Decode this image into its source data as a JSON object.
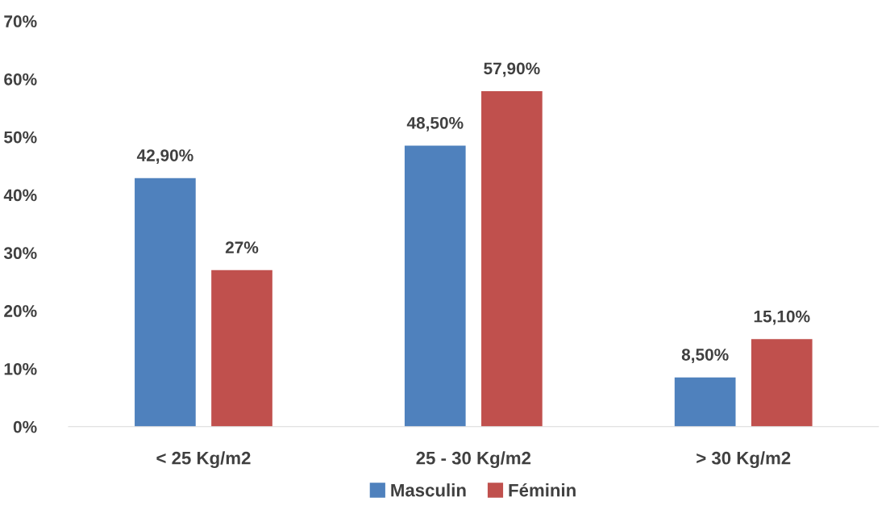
{
  "chart_data": {
    "type": "bar",
    "categories": [
      "< 25 Kg/m2",
      "25 - 30 Kg/m2",
      "> 30 Kg/m2"
    ],
    "series": [
      {
        "name": "Masculin",
        "color": "#4f81bd",
        "values": [
          42.9,
          48.5,
          8.5
        ],
        "value_labels": [
          "42,90%",
          "48,50%",
          "8,50%"
        ]
      },
      {
        "name": "Féminin",
        "color": "#c0504d",
        "values": [
          27,
          57.9,
          15.1
        ],
        "value_labels": [
          "27%",
          "57,90%",
          "15,10%"
        ]
      }
    ],
    "ylim": [
      0,
      70
    ],
    "yticks": [
      {
        "value": 0,
        "label": "0%"
      },
      {
        "value": 10,
        "label": "10%"
      },
      {
        "value": 20,
        "label": "20%"
      },
      {
        "value": 30,
        "label": "30%"
      },
      {
        "value": 40,
        "label": "40%"
      },
      {
        "value": 50,
        "label": "50%"
      },
      {
        "value": 60,
        "label": "60%"
      },
      {
        "value": 70,
        "label": "70%"
      }
    ],
    "grid": false,
    "legend": "bottom"
  }
}
